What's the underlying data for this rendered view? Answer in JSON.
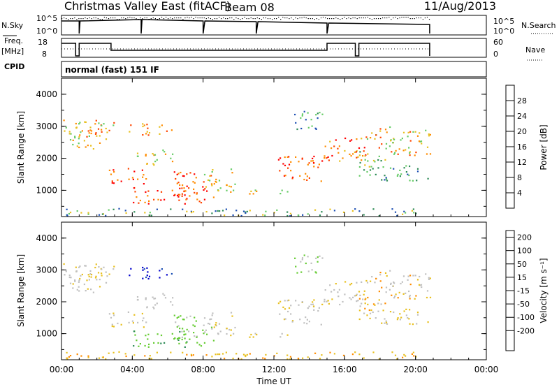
{
  "header": {
    "title": "Christmas Valley East (fitACF)",
    "beam": "Beam 08",
    "date": "11/Aug/2013"
  },
  "status_panels": {
    "nsky_label": "N.Sky",
    "nsearch_label": "N.Search",
    "noise_ticks": [
      "10^5",
      "10^0"
    ],
    "freq_label": "Freq.",
    "freq_unit": "[MHz]",
    "freq_ticks": [
      "18",
      "8"
    ],
    "nave_label": "Nave",
    "nave_ticks": [
      "60",
      "0"
    ],
    "cpid_label": "CPID",
    "cpid_text": "normal (fast) 151 IF"
  },
  "chart_data": [
    {
      "type": "heatmap",
      "title": "",
      "ylabel": "Slant Range [km]",
      "xlabel": "",
      "x_ticks": [
        "00:00",
        "04:00",
        "08:00",
        "12:00",
        "16:00",
        "20:00",
        "00:00"
      ],
      "y_ticks": [
        1000,
        2000,
        3000,
        4000
      ],
      "xlim_hours": [
        0,
        24
      ],
      "ylim_km": [
        180,
        4500
      ],
      "colorbar": {
        "label": "Power [dB]",
        "ticks": [
          4,
          8,
          12,
          16,
          20,
          24,
          28
        ],
        "colors": [
          "#0000ff",
          "#1e50b4",
          "#2e8b57",
          "#66cc66",
          "#e8c020",
          "#ff8c00",
          "#ff4500",
          "#ff0000"
        ]
      }
    },
    {
      "type": "heatmap",
      "title": "",
      "ylabel": "Slant Range [km]",
      "xlabel": "Time UT",
      "x_ticks": [
        "00:00",
        "04:00",
        "08:00",
        "12:00",
        "16:00",
        "20:00",
        "00:00"
      ],
      "y_ticks": [
        1000,
        2000,
        3000,
        4000
      ],
      "xlim_hours": [
        0,
        24
      ],
      "ylim_km": [
        180,
        4500
      ],
      "colorbar": {
        "label": "Velocity [m s⁻¹]",
        "ticks": [
          "200",
          "100",
          "50",
          "15",
          "-15",
          "-50",
          "-100",
          "-200"
        ],
        "colors": [
          "#0000cc",
          "#1e50b4",
          "#2e8b57",
          "#66cc33",
          "#c0c0c0",
          "#e8c020",
          "#ff8c00",
          "#ff4500",
          "#ff0000"
        ]
      }
    }
  ],
  "colors": {
    "gray": "#c0c0c0"
  }
}
